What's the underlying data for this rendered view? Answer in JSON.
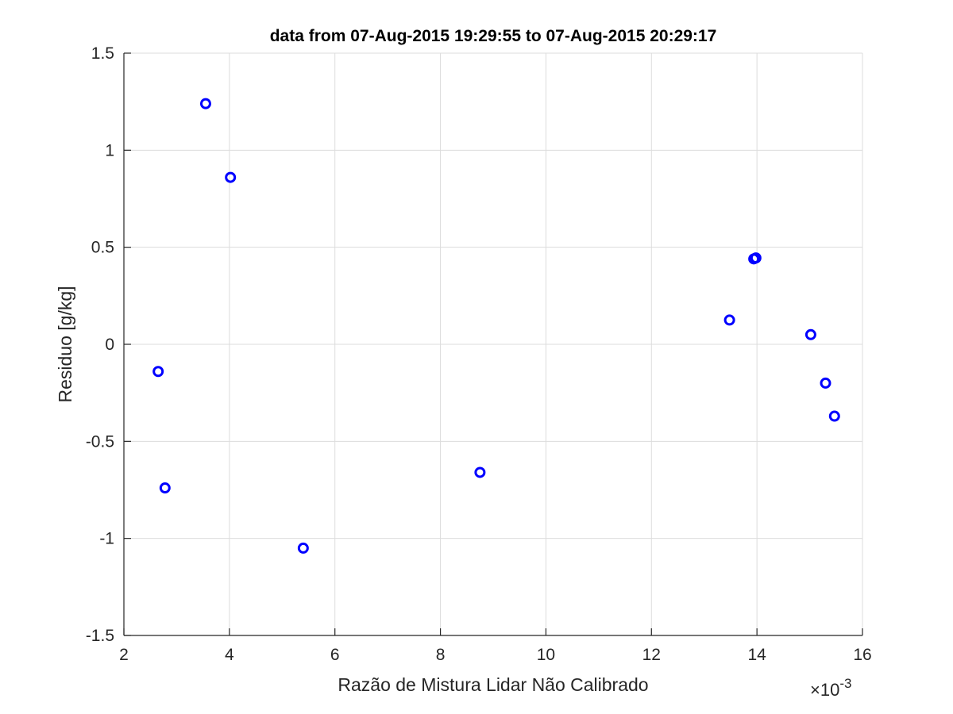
{
  "chart_data": {
    "type": "scatter",
    "title": "data from 07-Aug-2015 19:29:55 to 07-Aug-2015 20:29:17",
    "xlabel": "Razão de Mistura Lidar Não Calibrado",
    "ylabel": "Residuo [g/kg]",
    "x_exponent_label": "×10",
    "x_exponent_power": "-3",
    "x_multiplier": 0.001,
    "xlim": [
      2,
      16
    ],
    "ylim": [
      -1.5,
      1.5
    ],
    "x_ticks": [
      2,
      4,
      6,
      8,
      10,
      12,
      14,
      16
    ],
    "y_ticks": [
      -1.5,
      -1,
      -0.5,
      0,
      0.5,
      1,
      1.5
    ],
    "x_tick_labels": [
      "2",
      "4",
      "6",
      "8",
      "10",
      "12",
      "14",
      "16"
    ],
    "y_tick_labels": [
      "-1.5",
      "-1",
      "-0.5",
      "0",
      "0.5",
      "1",
      "1.5"
    ],
    "grid": true,
    "legend": "none",
    "marker": "circle",
    "marker_color": "#0000ff",
    "series": [
      {
        "x": [
          2.65,
          2.78,
          3.55,
          4.02,
          5.4,
          8.75,
          13.48,
          13.94,
          13.98,
          15.02,
          15.3,
          15.47
        ],
        "y": [
          -0.14,
          -0.74,
          1.24,
          0.86,
          -1.05,
          -0.66,
          0.125,
          0.44,
          0.445,
          0.05,
          -0.2,
          -0.37
        ]
      }
    ]
  }
}
